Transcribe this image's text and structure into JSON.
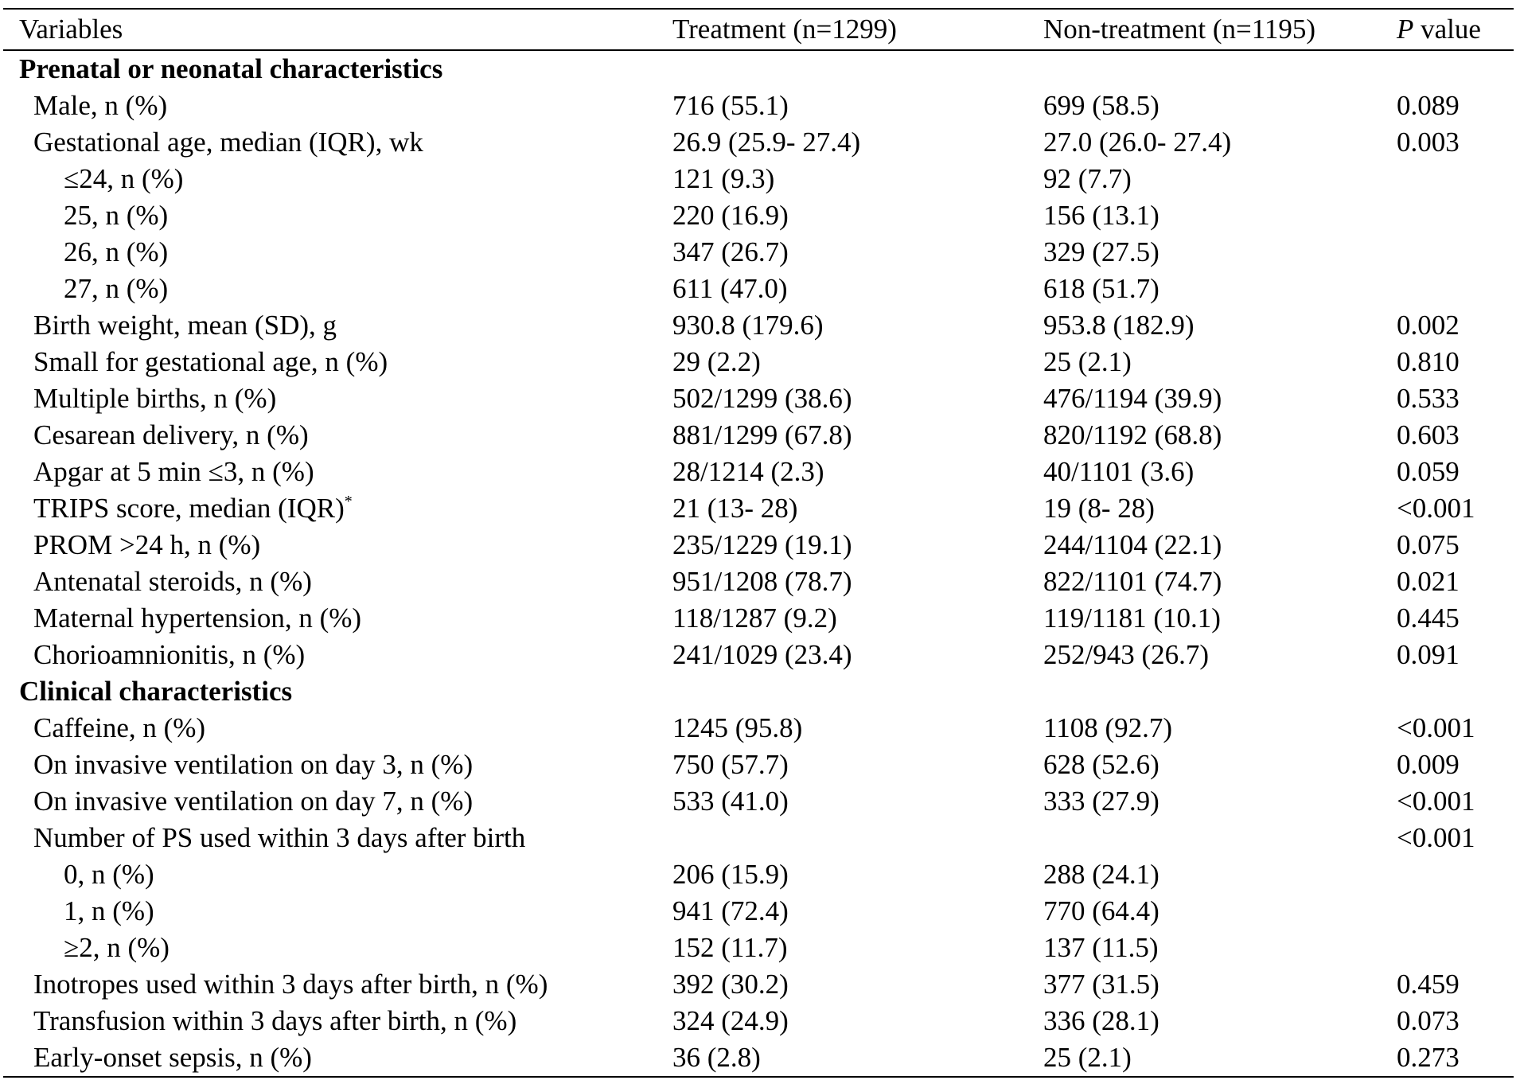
{
  "header": {
    "variables": "Variables",
    "treatment": "Treatment (n=1299)",
    "non_treatment": "Non-treatment (n=1195)",
    "p_italic": "P",
    "p_rest": " value"
  },
  "sections": {
    "prenatal": "Prenatal or neonatal characteristics",
    "clinical": "Clinical characteristics"
  },
  "rows": [
    {
      "label": "Male, n (%)",
      "treatment": "716 (55.1)",
      "non_treatment": "699 (58.5)",
      "p": "0.089"
    },
    {
      "label": "Gestational age, median (IQR), wk",
      "treatment": "26.9 (25.9- 27.4)",
      "non_treatment": "27.0 (26.0- 27.4)",
      "p": "0.003"
    },
    {
      "label": "≤24, n (%)",
      "treatment": "121 (9.3)",
      "non_treatment": "92 (7.7)",
      "p": ""
    },
    {
      "label": "25, n (%)",
      "treatment": "220 (16.9)",
      "non_treatment": "156 (13.1)",
      "p": ""
    },
    {
      "label": "26, n (%)",
      "treatment": "347 (26.7)",
      "non_treatment": "329 (27.5)",
      "p": ""
    },
    {
      "label": "27, n (%)",
      "treatment": "611 (47.0)",
      "non_treatment": "618 (51.7)",
      "p": ""
    },
    {
      "label": "Birth weight, mean (SD), g",
      "treatment": "930.8 (179.6)",
      "non_treatment": "953.8 (182.9)",
      "p": "0.002"
    },
    {
      "label": "Small for gestational age, n (%)",
      "treatment": "29 (2.2)",
      "non_treatment": "25 (2.1)",
      "p": "0.810"
    },
    {
      "label": "Multiple births, n (%)",
      "treatment": "502/1299 (38.6)",
      "non_treatment": "476/1194 (39.9)",
      "p": "0.533"
    },
    {
      "label": "Cesarean delivery, n (%)",
      "treatment": "881/1299 (67.8)",
      "non_treatment": "820/1192 (68.8)",
      "p": "0.603"
    },
    {
      "label": "Apgar at 5 min ≤3, n (%)",
      "treatment": "28/1214 (2.3)",
      "non_treatment": "40/1101 (3.6)",
      "p": "0.059"
    },
    {
      "label": "TRIPS score, median (IQR)",
      "label_sup": "*",
      "treatment": "21 (13- 28)",
      "non_treatment": "19 (8- 28)",
      "p": "<0.001"
    },
    {
      "label": "PROM >24 h, n (%)",
      "treatment": "235/1229 (19.1)",
      "non_treatment": "244/1104 (22.1)",
      "p": "0.075"
    },
    {
      "label": "Antenatal steroids, n (%)",
      "treatment": "951/1208 (78.7)",
      "non_treatment": "822/1101 (74.7)",
      "p": "0.021"
    },
    {
      "label": "Maternal hypertension, n (%)",
      "treatment": "118/1287 (9.2)",
      "non_treatment": "119/1181 (10.1)",
      "p": "0.445"
    },
    {
      "label": "Chorioamnionitis, n (%)",
      "treatment": "241/1029 (23.4)",
      "non_treatment": "252/943 (26.7)",
      "p": "0.091"
    },
    {
      "label": "Caffeine, n (%)",
      "treatment": "1245 (95.8)",
      "non_treatment": "1108 (92.7)",
      "p": "<0.001"
    },
    {
      "label": "On invasive ventilation on day 3, n (%)",
      "treatment": "750 (57.7)",
      "non_treatment": "628 (52.6)",
      "p": "0.009"
    },
    {
      "label": "On invasive ventilation on day 7, n (%)",
      "treatment": "533 (41.0)",
      "non_treatment": "333 (27.9)",
      "p": "<0.001"
    },
    {
      "label": "Number of PS used within 3 days after birth",
      "treatment": "",
      "non_treatment": "",
      "p": "<0.001"
    },
    {
      "label": "0, n (%)",
      "treatment": "206 (15.9)",
      "non_treatment": "288 (24.1)",
      "p": ""
    },
    {
      "label": "1, n (%)",
      "treatment": "941 (72.4)",
      "non_treatment": "770 (64.4)",
      "p": ""
    },
    {
      "label": "≥2, n (%)",
      "treatment": "152 (11.7)",
      "non_treatment": "137 (11.5)",
      "p": ""
    },
    {
      "label": "Inotropes used within 3 days after birth, n (%)",
      "treatment": "392 (30.2)",
      "non_treatment": "377 (31.5)",
      "p": "0.459"
    },
    {
      "label": "Transfusion within 3 days after birth, n (%)",
      "treatment": "324 (24.9)",
      "non_treatment": "336 (28.1)",
      "p": "0.073"
    },
    {
      "label": "Early-onset sepsis, n (%)",
      "treatment": "36 (2.8)",
      "non_treatment": "25 (2.1)",
      "p": "0.273"
    }
  ]
}
